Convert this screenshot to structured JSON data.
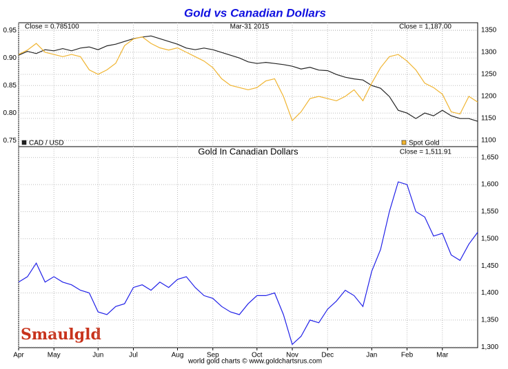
{
  "chart_data": [
    {
      "type": "line",
      "title": "Gold vs Canadian Dollars",
      "annotations": [
        "Close = 0.785100",
        "Mar-31 2015",
        "Close = 1,187.00"
      ],
      "ylim": [
        0.739,
        0.964
      ],
      "yticks": [
        0.75,
        {
          "value": 0.8,
          "label": "0.80"
        },
        0.85,
        {
          "value": 0.9,
          "label": "0.90"
        },
        0.95
      ],
      "y2lim": [
        1086,
        1367
      ],
      "y2ticks": [
        1100,
        1150,
        1200,
        1250,
        1300,
        1350
      ],
      "grid": true,
      "series": [
        {
          "name": "CAD / USD",
          "color": "#222222",
          "values": [
            0.905,
            0.912,
            0.908,
            0.915,
            0.913,
            0.917,
            0.913,
            0.918,
            0.92,
            0.915,
            0.922,
            0.925,
            0.93,
            0.935,
            0.938,
            0.94,
            0.935,
            0.93,
            0.925,
            0.918,
            0.915,
            0.918,
            0.915,
            0.91,
            0.905,
            0.9,
            0.893,
            0.89,
            0.892,
            0.89,
            0.888,
            0.885,
            0.88,
            0.883,
            0.878,
            0.877,
            0.87,
            0.865,
            0.862,
            0.86,
            0.85,
            0.845,
            0.83,
            0.805,
            0.8,
            0.79,
            0.8,
            0.795,
            0.805,
            0.795,
            0.79,
            0.79,
            0.785
          ]
        },
        {
          "name": "Spot Gold",
          "color": "#f0b430",
          "axis": "y2",
          "values": [
            1295,
            1305,
            1320,
            1300,
            1295,
            1290,
            1295,
            1290,
            1260,
            1250,
            1260,
            1275,
            1315,
            1330,
            1335,
            1320,
            1310,
            1305,
            1310,
            1300,
            1290,
            1280,
            1265,
            1240,
            1225,
            1220,
            1215,
            1220,
            1235,
            1240,
            1200,
            1145,
            1165,
            1195,
            1200,
            1195,
            1190,
            1200,
            1215,
            1190,
            1230,
            1265,
            1290,
            1295,
            1280,
            1260,
            1230,
            1220,
            1205,
            1165,
            1160,
            1200,
            1187
          ]
        }
      ]
    },
    {
      "type": "line",
      "title": "Gold In Canadian Dollars",
      "annotations": [
        "Close = 1,511.91"
      ],
      "categories": [
        "Apr",
        null,
        null,
        null,
        "May",
        null,
        null,
        null,
        null,
        "Jun",
        null,
        null,
        null,
        "Jul",
        null,
        null,
        null,
        null,
        "Aug",
        null,
        null,
        null,
        "Sep",
        null,
        null,
        null,
        null,
        "Oct",
        null,
        null,
        null,
        "Nov",
        null,
        null,
        null,
        "Dec",
        null,
        null,
        null,
        null,
        "Jan",
        null,
        null,
        null,
        "Feb",
        null,
        null,
        null,
        "Mar",
        null,
        null,
        null,
        null
      ],
      "ylim": [
        1299,
        1670
      ],
      "yticks": [
        {
          "value": 1300,
          "label": "1,300"
        },
        {
          "value": 1350,
          "label": "1,350"
        },
        {
          "value": 1400,
          "label": "1,400"
        },
        {
          "value": 1450,
          "label": "1,450"
        },
        {
          "value": 1500,
          "label": "1,500"
        },
        {
          "value": 1550,
          "label": "1,550"
        },
        {
          "value": 1600,
          "label": "1,600"
        },
        {
          "value": 1650,
          "label": "1,650"
        }
      ],
      "grid": true,
      "series": [
        {
          "name": "Gold In Canadian Dollars",
          "color": "#2020e8",
          "values": [
            1420,
            1430,
            1455,
            1420,
            1430,
            1420,
            1415,
            1405,
            1400,
            1365,
            1360,
            1375,
            1380,
            1410,
            1415,
            1405,
            1420,
            1410,
            1425,
            1430,
            1410,
            1395,
            1390,
            1375,
            1365,
            1360,
            1380,
            1395,
            1395,
            1400,
            1360,
            1305,
            1320,
            1350,
            1345,
            1370,
            1385,
            1405,
            1395,
            1375,
            1440,
            1480,
            1550,
            1605,
            1600,
            1550,
            1540,
            1505,
            1510,
            1470,
            1460,
            1490,
            1512
          ]
        }
      ]
    }
  ],
  "footer": "world gold charts © www.goldchartsrus.com",
  "logo": "Smaulgld"
}
